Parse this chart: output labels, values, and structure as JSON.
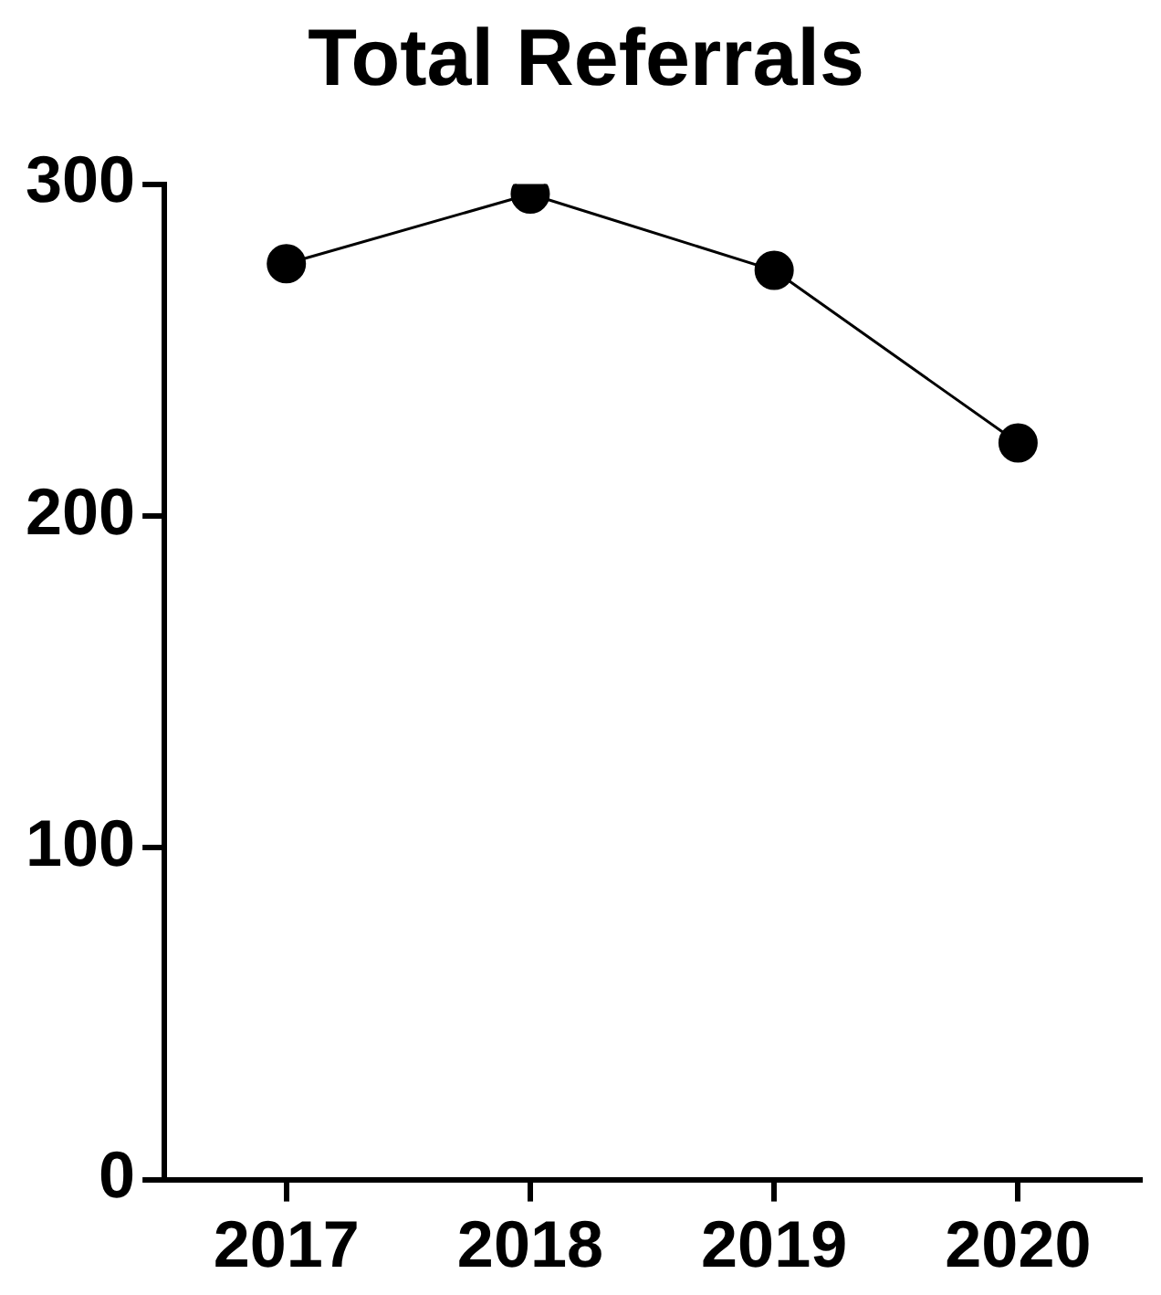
{
  "chart_data": {
    "type": "line",
    "title": "Total Referrals",
    "categories": [
      "2017",
      "2018",
      "2019",
      "2020"
    ],
    "series": [
      {
        "color": "#000000",
        "values": [
          276,
          297,
          274,
          222
        ]
      }
    ],
    "ylim": [
      0,
      300
    ],
    "yticks": [
      0,
      100,
      200,
      300
    ],
    "grid": false,
    "legend": false,
    "marker": "circle",
    "line_style": "solid"
  }
}
